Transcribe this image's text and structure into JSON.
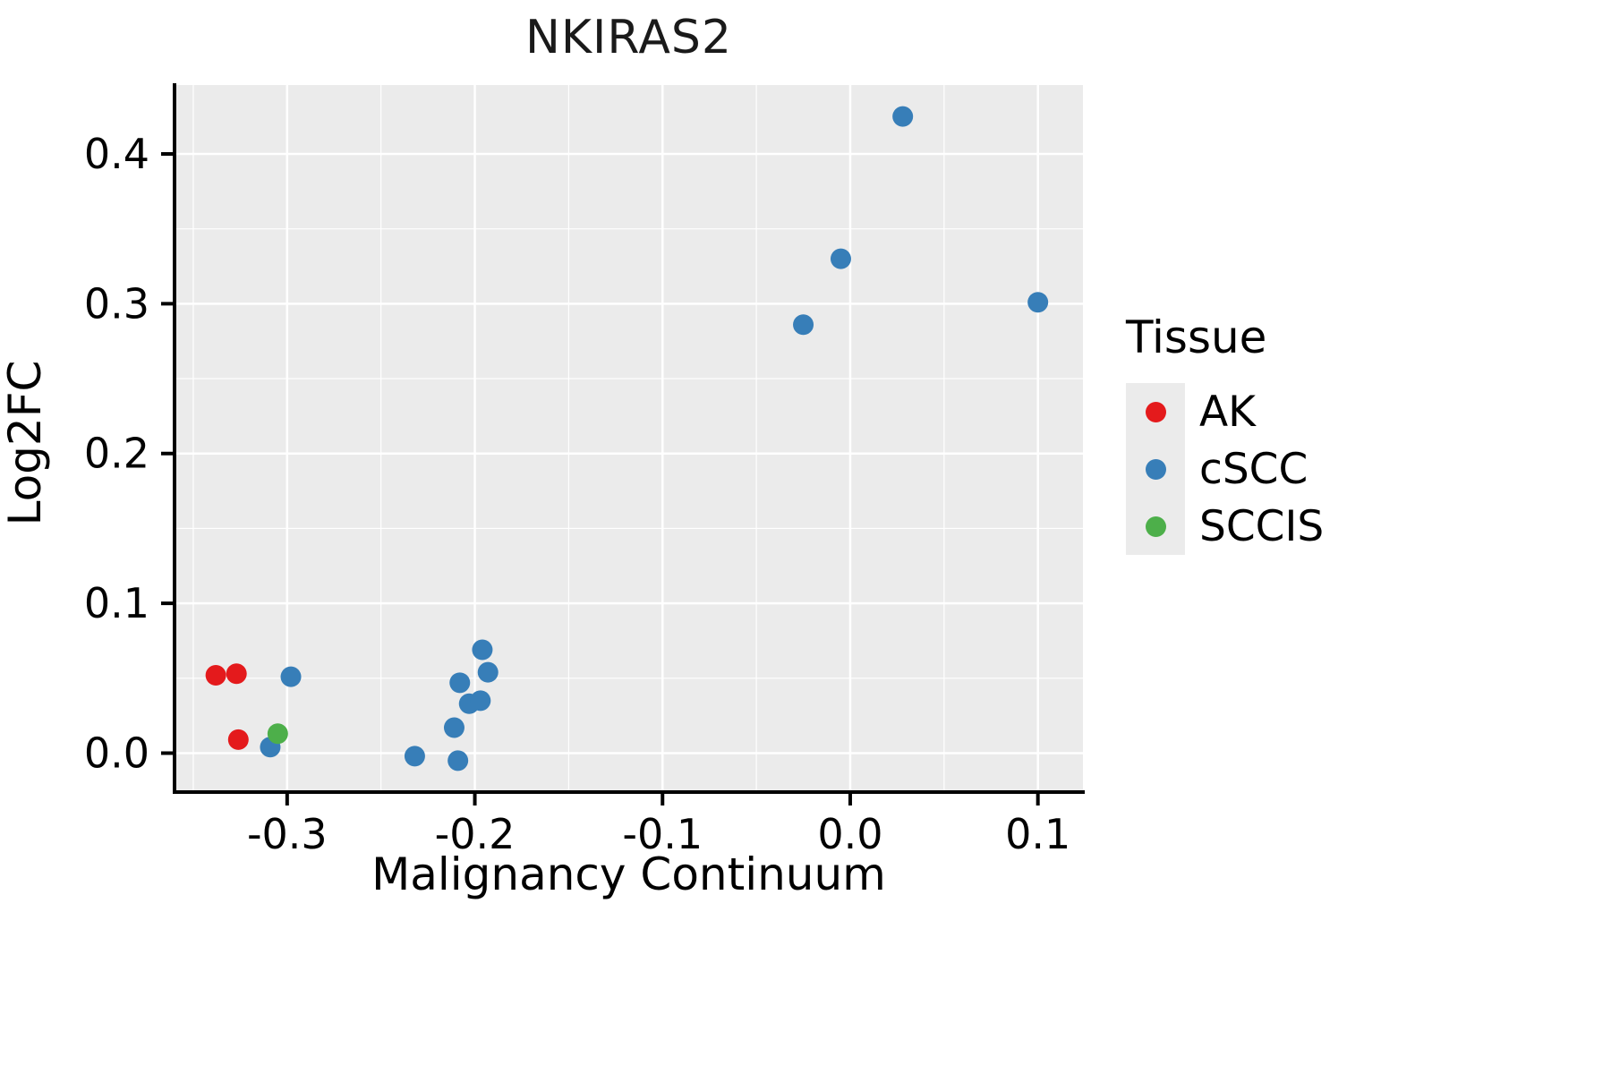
{
  "title": "NKIRAS2",
  "legend": {
    "title": "Tissue",
    "items": [
      {
        "label": "AK",
        "color": "#E41A1C"
      },
      {
        "label": "cSCC",
        "color": "#377EB8"
      },
      {
        "label": "SCCIS",
        "color": "#4DAF4A"
      }
    ]
  },
  "chart_data": {
    "type": "scatter",
    "title": "NKIRAS2",
    "xlabel": "Malignancy Continuum",
    "ylabel": "Log2FC",
    "xlim": [
      -0.36,
      0.124
    ],
    "ylim": [
      -0.026,
      0.446
    ],
    "x_ticks": {
      "values": [
        -0.3,
        -0.2,
        -0.1,
        0.0,
        0.1
      ],
      "labels": [
        "-0.3",
        "-0.2",
        "-0.1",
        "0.0",
        "0.1"
      ]
    },
    "y_ticks": {
      "values": [
        0.0,
        0.1,
        0.2,
        0.3,
        0.4
      ],
      "labels": [
        "0.0",
        "0.1",
        "0.2",
        "0.3",
        "0.4"
      ]
    },
    "x_minor_ticks": [
      -0.35,
      -0.25,
      -0.15,
      -0.05,
      0.05
    ],
    "y_minor_ticks": [
      0.05,
      0.15,
      0.25,
      0.35
    ],
    "grid": true,
    "legend_position": "right",
    "panel_background": "#EBEBEB",
    "grid_color": "#FFFFFF",
    "point_radius": 11.5,
    "series": [
      {
        "name": "AK",
        "color": "#E41A1C",
        "points": [
          [
            -0.338,
            0.052
          ],
          [
            -0.327,
            0.053
          ],
          [
            -0.326,
            0.009
          ]
        ]
      },
      {
        "name": "cSCC",
        "color": "#377EB8",
        "points": [
          [
            -0.309,
            0.004
          ],
          [
            -0.298,
            0.051
          ],
          [
            -0.232,
            -0.002
          ],
          [
            -0.209,
            -0.005
          ],
          [
            -0.211,
            0.017
          ],
          [
            -0.208,
            0.047
          ],
          [
            -0.203,
            0.033
          ],
          [
            -0.197,
            0.035
          ],
          [
            -0.193,
            0.054
          ],
          [
            -0.196,
            0.069
          ],
          [
            -0.025,
            0.286
          ],
          [
            -0.005,
            0.33
          ],
          [
            0.028,
            0.425
          ],
          [
            0.1,
            0.301
          ]
        ]
      },
      {
        "name": "SCCIS",
        "color": "#4DAF4A",
        "points": [
          [
            -0.305,
            0.013
          ]
        ]
      }
    ]
  }
}
